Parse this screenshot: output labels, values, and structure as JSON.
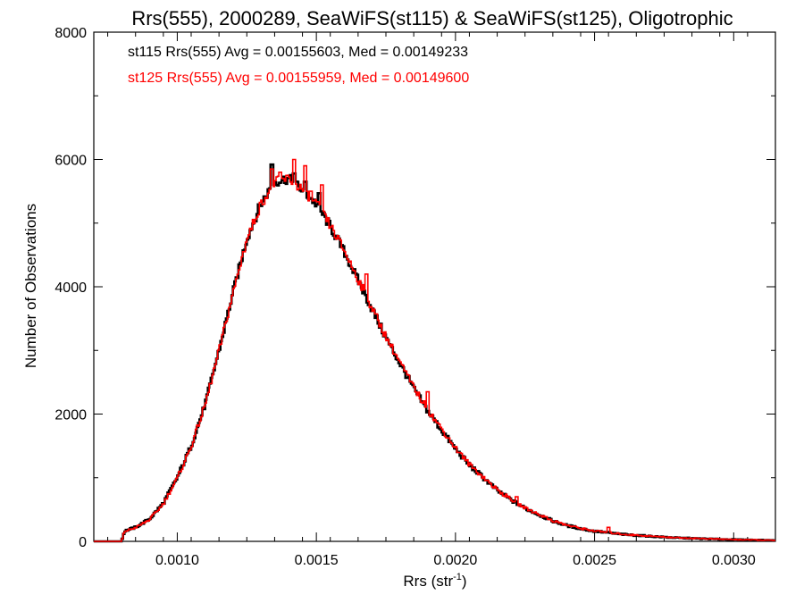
{
  "chart_data": {
    "type": "line",
    "title": "Rrs(555), 2000289, SeaWiFS(st115) & SeaWiFS(st125), Oligotrophic",
    "xlabel": {
      "main": "Rrs (str",
      "sup": "-1",
      "close": ")"
    },
    "ylabel": "Number of Observations",
    "xlim": [
      0.0007,
      0.00315
    ],
    "ylim": [
      0,
      8000
    ],
    "x_ticks": [
      0.001,
      0.0015,
      0.002,
      0.0025,
      0.003
    ],
    "x_tick_labels": [
      "0.0010",
      "0.0015",
      "0.0020",
      "0.0025",
      "0.0030"
    ],
    "y_ticks": [
      0,
      2000,
      4000,
      6000,
      8000
    ],
    "y_tick_labels": [
      "0",
      "2000",
      "4000",
      "6000",
      "8000"
    ],
    "bin_width": 5e-06,
    "grid": false,
    "legend_position": "top-left",
    "series": [
      {
        "name": "st115",
        "legend_text": "st115 Rrs(555) Avg = 0.00155603, Med = 0.00149233",
        "color": "#000000",
        "points": [
          [
            0.0007,
            0
          ],
          [
            0.0008,
            0
          ],
          [
            0.00081,
            160
          ],
          [
            0.00085,
            220
          ],
          [
            0.0009,
            350
          ],
          [
            0.00095,
            600
          ],
          [
            0.001,
            1000
          ],
          [
            0.00105,
            1500
          ],
          [
            0.0011,
            2150
          ],
          [
            0.00115,
            3000
          ],
          [
            0.0012,
            3900
          ],
          [
            0.00125,
            4750
          ],
          [
            0.0013,
            5300
          ],
          [
            0.00135,
            5650
          ],
          [
            0.0014,
            5700
          ],
          [
            0.00145,
            5520
          ],
          [
            0.0015,
            5300
          ],
          [
            0.00155,
            4950
          ],
          [
            0.0016,
            4550
          ],
          [
            0.00165,
            4100
          ],
          [
            0.0017,
            3650
          ],
          [
            0.00175,
            3200
          ],
          [
            0.0018,
            2800
          ],
          [
            0.00185,
            2400
          ],
          [
            0.0019,
            2050
          ],
          [
            0.00195,
            1750
          ],
          [
            0.002,
            1450
          ],
          [
            0.00205,
            1200
          ],
          [
            0.0021,
            1000
          ],
          [
            0.00215,
            800
          ],
          [
            0.0022,
            650
          ],
          [
            0.00225,
            520
          ],
          [
            0.0023,
            420
          ],
          [
            0.00235,
            320
          ],
          [
            0.0024,
            250
          ],
          [
            0.00245,
            200
          ],
          [
            0.0025,
            160
          ],
          [
            0.0026,
            110
          ],
          [
            0.0027,
            80
          ],
          [
            0.0028,
            55
          ],
          [
            0.0029,
            40
          ],
          [
            0.003,
            28
          ],
          [
            0.00315,
            15
          ]
        ],
        "spikes": [
          [
            0.00134,
            5920
          ],
          [
            0.00142,
            5780
          ],
          [
            0.00146,
            5650
          ],
          [
            0.00151,
            5470
          ]
        ]
      },
      {
        "name": "st125",
        "legend_text": "st125 Rrs(555) Avg = 0.00155959, Med = 0.00149600",
        "color": "#ff0000",
        "points": [
          [
            0.0007,
            0
          ],
          [
            0.0008,
            0
          ],
          [
            0.00081,
            155
          ],
          [
            0.00085,
            215
          ],
          [
            0.0009,
            340
          ],
          [
            0.00095,
            590
          ],
          [
            0.001,
            990
          ],
          [
            0.00105,
            1490
          ],
          [
            0.0011,
            2140
          ],
          [
            0.00115,
            2990
          ],
          [
            0.0012,
            3890
          ],
          [
            0.00125,
            4740
          ],
          [
            0.0013,
            5290
          ],
          [
            0.00135,
            5640
          ],
          [
            0.0014,
            5700
          ],
          [
            0.00145,
            5530
          ],
          [
            0.0015,
            5310
          ],
          [
            0.00155,
            4960
          ],
          [
            0.0016,
            4570
          ],
          [
            0.00165,
            4120
          ],
          [
            0.0017,
            3670
          ],
          [
            0.00175,
            3220
          ],
          [
            0.0018,
            2820
          ],
          [
            0.00185,
            2420
          ],
          [
            0.0019,
            2070
          ],
          [
            0.00195,
            1770
          ],
          [
            0.002,
            1470
          ],
          [
            0.00205,
            1210
          ],
          [
            0.0021,
            1010
          ],
          [
            0.00215,
            810
          ],
          [
            0.0022,
            660
          ],
          [
            0.00225,
            525
          ],
          [
            0.0023,
            425
          ],
          [
            0.00235,
            325
          ],
          [
            0.0024,
            255
          ],
          [
            0.00245,
            205
          ],
          [
            0.0025,
            165
          ],
          [
            0.0026,
            112
          ],
          [
            0.0027,
            82
          ],
          [
            0.0028,
            57
          ],
          [
            0.0029,
            42
          ],
          [
            0.003,
            29
          ],
          [
            0.00315,
            16
          ]
        ],
        "spikes": [
          [
            0.00124,
            4550
          ],
          [
            0.00134,
            5850
          ],
          [
            0.00137,
            5800
          ],
          [
            0.00142,
            6000
          ],
          [
            0.00146,
            5900
          ],
          [
            0.00148,
            5500
          ],
          [
            0.00152,
            5600
          ],
          [
            0.00168,
            4200
          ],
          [
            0.0019,
            2350
          ],
          [
            0.00222,
            700
          ],
          [
            0.00255,
            220
          ]
        ]
      }
    ]
  }
}
